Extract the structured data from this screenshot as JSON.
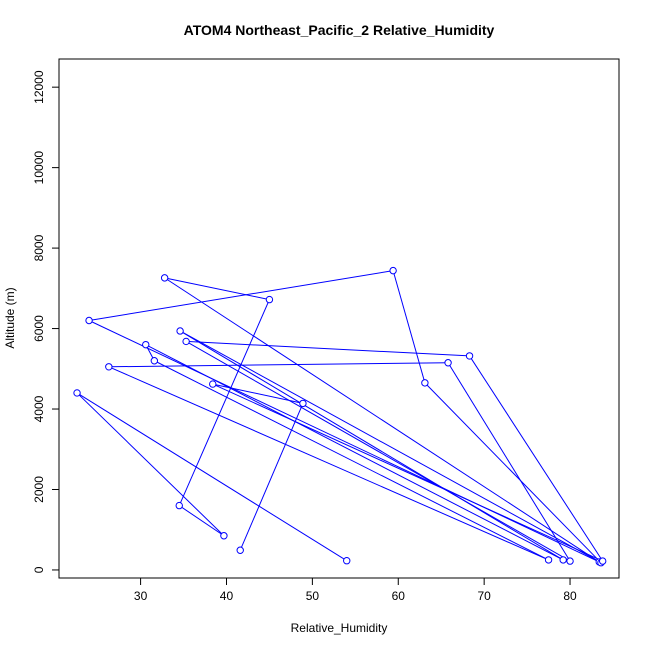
{
  "chart_data": {
    "type": "line",
    "title": "ATOM4 Northeast_Pacific_2 Relative_Humidity",
    "xlabel": "Relative_Humidity",
    "ylabel": "Altitude (m)",
    "xlim": [
      20.5,
      85.7
    ],
    "ylim": [
      -200,
      12700
    ],
    "x_ticks": [
      30,
      40,
      50,
      60,
      70,
      80
    ],
    "y_ticks": [
      0,
      2000,
      4000,
      6000,
      8000,
      10000,
      12000
    ],
    "grid": false,
    "line_color": "#0000ff",
    "marker": "open-circle",
    "series": [
      {
        "x": [
          54.0,
          22.6,
          39.7,
          34.5,
          45.0,
          32.8,
          83.4,
          24.0,
          59.4,
          63.1,
          83.6,
          34.6,
          79.2,
          30.6,
          31.6,
          77.5,
          26.3,
          65.8,
          80.0,
          35.3,
          68.3,
          83.8,
          38.4,
          48.9,
          41.6
        ],
        "y": [
          230,
          4400,
          850,
          1600,
          6720,
          7260,
          200,
          6200,
          7440,
          4650,
          180,
          5940,
          250,
          5600,
          5200,
          250,
          5050,
          5150,
          220,
          5680,
          5320,
          220,
          4620,
          4140,
          490
        ]
      }
    ]
  }
}
